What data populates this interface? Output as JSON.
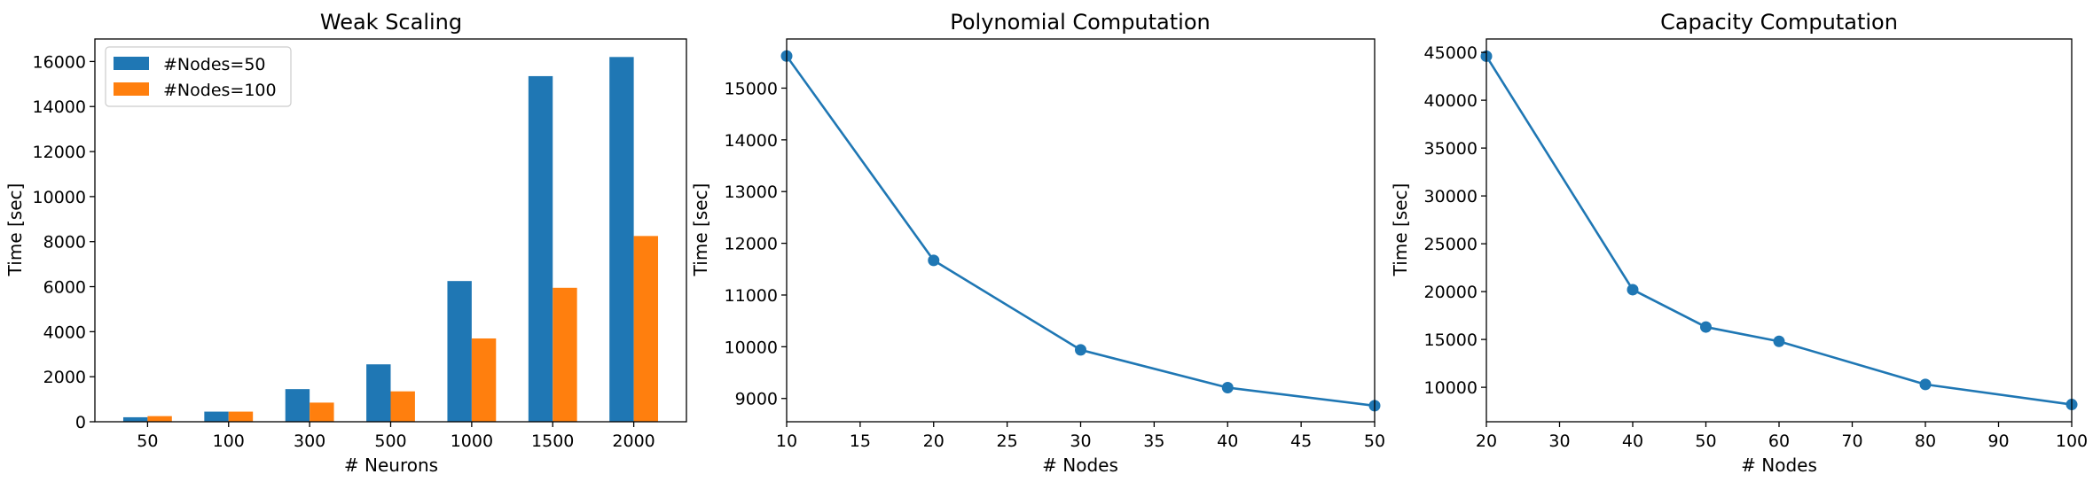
{
  "chart_data": [
    {
      "type": "bar",
      "title": "Weak Scaling",
      "xlabel": "# Neurons",
      "ylabel": "Time [sec]",
      "categories": [
        "50",
        "100",
        "300",
        "500",
        "1000",
        "1500",
        "2000"
      ],
      "series": [
        {
          "name": "#Nodes=50",
          "color": "#1f77b4",
          "values": [
            200,
            450,
            1450,
            2550,
            6250,
            15350,
            16200
          ]
        },
        {
          "name": "#Nodes=100",
          "color": "#ff7f0e",
          "values": [
            250,
            450,
            850,
            1350,
            3700,
            5950,
            8250
          ]
        }
      ],
      "ylim": [
        0,
        17000
      ],
      "yticks": [
        0,
        2000,
        4000,
        6000,
        8000,
        10000,
        12000,
        14000,
        16000
      ],
      "legend": "top-left",
      "grid": false
    },
    {
      "type": "line",
      "title": "Polynomial Computation",
      "xlabel": "# Nodes",
      "ylabel": "Time [sec]",
      "series": [
        {
          "color": "#1f77b4",
          "x": [
            10,
            20,
            30,
            40,
            50
          ],
          "y": [
            15620,
            11670,
            9940,
            9210,
            8860
          ]
        }
      ],
      "xlim": [
        10,
        50
      ],
      "ylim": [
        8550,
        15950
      ],
      "xticks": [
        10,
        15,
        20,
        25,
        30,
        35,
        40,
        45,
        50
      ],
      "yticks": [
        9000,
        10000,
        11000,
        12000,
        13000,
        14000,
        15000
      ],
      "grid": false
    },
    {
      "type": "line",
      "title": "Capacity Computation",
      "xlabel": "# Nodes",
      "ylabel": "Time [sec]",
      "series": [
        {
          "color": "#1f77b4",
          "x": [
            20,
            40,
            50,
            60,
            80,
            100
          ],
          "y": [
            44600,
            20200,
            16300,
            14800,
            10300,
            8200
          ]
        }
      ],
      "xlim": [
        20,
        100
      ],
      "ylim": [
        6400,
        46400
      ],
      "xticks": [
        20,
        30,
        40,
        50,
        60,
        70,
        80,
        90,
        100
      ],
      "yticks": [
        10000,
        15000,
        20000,
        25000,
        30000,
        35000,
        40000,
        45000
      ],
      "grid": false
    }
  ]
}
